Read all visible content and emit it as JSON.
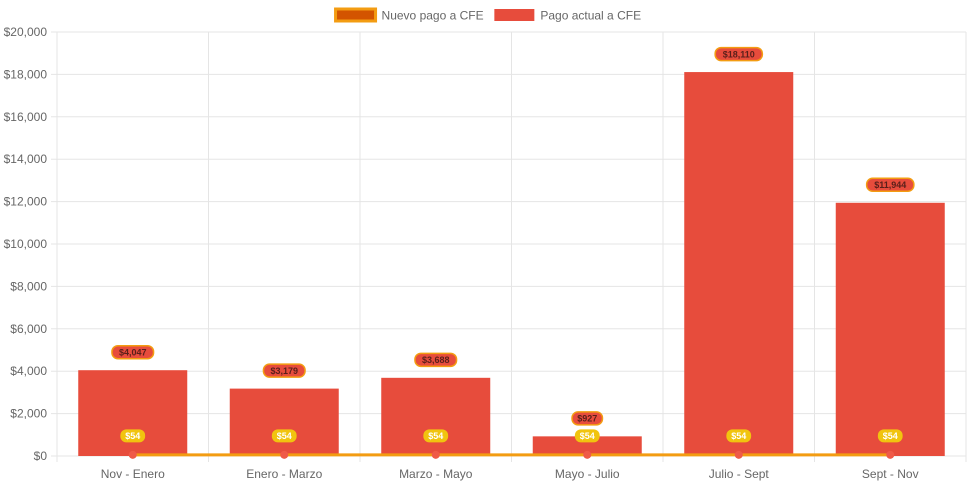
{
  "chart_data": {
    "type": "bar",
    "categories": [
      "Nov - Enero",
      "Enero - Marzo",
      "Marzo - Mayo",
      "Mayo - Julio",
      "Julio - Sept",
      "Sept - Nov"
    ],
    "series": [
      {
        "name": "Nuevo pago a CFE",
        "render": "line",
        "values": [
          54,
          54,
          54,
          54,
          54,
          54
        ],
        "data_labels": [
          "$54",
          "$54",
          "$54",
          "$54",
          "$54",
          "$54"
        ],
        "color": "#f39c12",
        "swatch_fill": "#d35400",
        "point_color": "#ef5a48"
      },
      {
        "name": "Pago actual a CFE",
        "render": "bar",
        "values": [
          4047,
          3179,
          3688,
          927,
          18110,
          11944
        ],
        "data_labels": [
          "$4,047",
          "$3,179",
          "$3,688",
          "$927",
          "$18,110",
          "$11,944"
        ],
        "color": "#e74c3c"
      }
    ],
    "y_ticks": [
      "$0",
      "$2,000",
      "$4,000",
      "$6,000",
      "$8,000",
      "$10,000",
      "$12,000",
      "$14,000",
      "$16,000",
      "$18,000",
      "$20,000"
    ],
    "ylim": [
      0,
      20000
    ],
    "grid": true,
    "legend_position": "top-center",
    "colors": {
      "grid": "#e5e5e5",
      "tick_text": "#666666",
      "bar_label_bg": "#e74c3c",
      "bar_label_border": "#f39c12",
      "bar_label_text": "#5a1f1a",
      "line_label_bg": "#f1c40f",
      "line_label_text": "#ffffff"
    }
  }
}
